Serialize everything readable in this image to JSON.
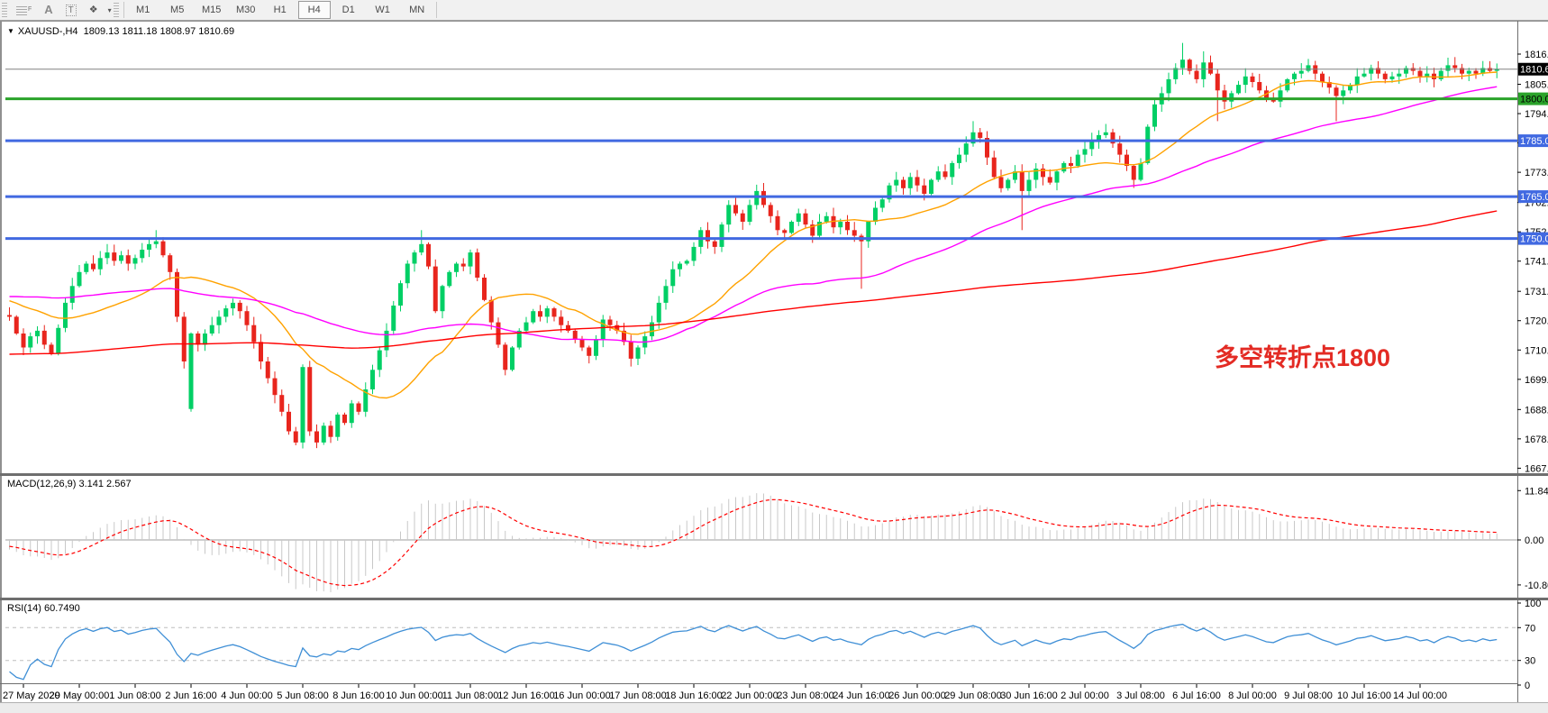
{
  "app": {
    "toolbar": {
      "icon_glyphs": {
        "frame": "F",
        "letterA": "A",
        "textTool": "T",
        "styles": "❖",
        "caret": "▾",
        "dropdown": "▼"
      },
      "timeframes": [
        "M1",
        "M5",
        "M15",
        "M30",
        "H1",
        "H4",
        "D1",
        "W1",
        "MN"
      ],
      "active_timeframe": "H4"
    }
  },
  "chart_data": {
    "type": "candlestick",
    "symbol": "XAUUSD-",
    "period": "H4",
    "header": "XAUUSD-,H4  1809.13 1811.18 1808.97 1810.69",
    "ohlc": {
      "open": 1809.13,
      "high": 1811.18,
      "low": 1808.97,
      "close": 1810.69
    },
    "price_axis_ticks": [
      "1816.0",
      "1805.2",
      "1794.7",
      "1784.2",
      "1773.7",
      "1762.9",
      "1752.4",
      "1741.9",
      "1731.1",
      "1720.6",
      "1710.1",
      "1699.6",
      "1688.8",
      "1678.3",
      "1667.8"
    ],
    "time_axis_labels": [
      "27 May 2020",
      "29 May 00:00",
      "1 Jun 08:00",
      "2 Jun 16:00",
      "4 Jun 00:00",
      "5 Jun 08:00",
      "8 Jun 16:00",
      "10 Jun 00:00",
      "11 Jun 08:00",
      "12 Jun 16:00",
      "16 Jun 00:00",
      "17 Jun 08:00",
      "18 Jun 16:00",
      "22 Jun 00:00",
      "23 Jun 08:00",
      "24 Jun 16:00",
      "26 Jun 00:00",
      "29 Jun 08:00",
      "30 Jun 16:00",
      "2 Jul 00:00",
      "3 Jul 08:00",
      "6 Jul 16:00",
      "8 Jul 00:00",
      "9 Jul 08:00",
      "10 Jul 16:00",
      "14 Jul 00:00"
    ],
    "current_price": {
      "value": 1810.6,
      "label": "1810.6",
      "line_color": "#808080",
      "badge_bg": "#000000",
      "badge_fg": "#ffffff"
    },
    "levels": [
      {
        "price": 1800.0,
        "label": "1800.0",
        "color": "#2aa32a",
        "badge_fg": "#000000"
      },
      {
        "price": 1785.0,
        "label": "1785.0",
        "color": "#4169e1",
        "badge_fg": "#ffffff"
      },
      {
        "price": 1765.0,
        "label": "1765.0",
        "color": "#4169e1",
        "badge_fg": "#ffffff"
      },
      {
        "price": 1750.0,
        "label": "1750.0",
        "color": "#4169e1",
        "badge_fg": "#ffffff"
      }
    ],
    "candles": {
      "first_index": -2,
      "up_color": "#00cf65",
      "down_color": "#e8251d",
      "closes": [
        1722,
        1716,
        1711,
        1715,
        1717,
        1712,
        1709,
        1718,
        1727,
        1733,
        1738,
        1741,
        1739,
        1743,
        1745,
        1742,
        1744,
        1741,
        1743,
        1746,
        1748,
        1749,
        1744,
        1738,
        1722,
        1706,
        1716,
        1712,
        1716,
        1719,
        1722,
        1725,
        1727,
        1724,
        1719,
        1713,
        1706,
        1700,
        1694,
        1688,
        1681,
        1677,
        1704,
        1681,
        1677,
        1683,
        1679,
        1687,
        1684,
        1691,
        1688,
        1696,
        1703,
        1710,
        1717,
        1726,
        1734,
        1741,
        1745,
        1748,
        1740,
        1724,
        1733,
        1738,
        1741,
        1740,
        1745,
        1736,
        1728,
        1720,
        1712,
        1703,
        1711,
        1717,
        1720,
        1724,
        1722,
        1725,
        1722,
        1719,
        1717,
        1714,
        1711,
        1708,
        1714,
        1721,
        1719,
        1717,
        1713,
        1707,
        1711,
        1715,
        1720,
        1727,
        1733,
        1739,
        1741,
        1742,
        1747,
        1753,
        1749,
        1747,
        1755,
        1762,
        1759,
        1756,
        1762,
        1767,
        1762,
        1758,
        1753,
        1752,
        1756,
        1759,
        1755,
        1751,
        1756,
        1758,
        1754,
        1756,
        1753,
        1751,
        1749,
        1756,
        1761,
        1764,
        1769,
        1771,
        1768,
        1772,
        1769,
        1766,
        1771,
        1774,
        1772,
        1777,
        1780,
        1784,
        1788,
        1786,
        1779,
        1772,
        1768,
        1771,
        1774,
        1767,
        1771,
        1775,
        1772,
        1770,
        1774,
        1777,
        1776,
        1780,
        1782,
        1785,
        1787,
        1788,
        1784,
        1780,
        1776,
        1771,
        1777,
        1790,
        1798,
        1802,
        1807,
        1811,
        1814,
        1810,
        1807,
        1813,
        1809,
        1803,
        1799,
        1802,
        1805,
        1808,
        1806,
        1803,
        1800,
        1799,
        1803,
        1807,
        1809,
        1810,
        1812,
        1809,
        1806,
        1804,
        1801,
        1803,
        1805,
        1808,
        1809,
        1811,
        1809,
        1807,
        1808,
        1809,
        1811,
        1810,
        1808,
        1809,
        1807,
        1810,
        1812,
        1811,
        1809,
        1810,
        1809,
        1811,
        1810,
        1810.7
      ],
      "gap_opens": {
        "24": 1689
      },
      "wick_highs": {
        "12": 1748,
        "19": 1753,
        "57": 1753,
        "136": 1792,
        "155": 1791,
        "166": 1820,
        "169": 1817
      },
      "wick_lows": {
        "24": 1688,
        "39": 1676,
        "42": 1675,
        "120": 1732,
        "143": 1753,
        "171": 1792,
        "188": 1792
      }
    },
    "moving_averages": [
      {
        "name": "fast-ma",
        "color": "#ffa200"
      },
      {
        "name": "medium-ma",
        "color": "#ff00ff"
      },
      {
        "name": "slow-ma",
        "color": "#ff0000"
      }
    ],
    "indicators": {
      "macd": {
        "label": "MACD(12,26,9) 3.141 2.567",
        "fast": 12,
        "slow": 26,
        "signal_period": 9,
        "main_value": 3.141,
        "signal_value": 2.567,
        "axis_ticks": [
          "11.848",
          "0.00",
          "-10.808"
        ],
        "histogram_color": "#c8c8c8",
        "signal_color": "#ff0000"
      },
      "rsi": {
        "label": "RSI(14) 60.7490",
        "period": 14,
        "value": 60.749,
        "axis_ticks": [
          "100",
          "70",
          "30",
          "0"
        ],
        "levels": [
          70,
          30
        ],
        "line_color": "#3f8fd6"
      }
    },
    "annotation": {
      "text": "多空转折点1800",
      "color": "#e32b24"
    }
  }
}
